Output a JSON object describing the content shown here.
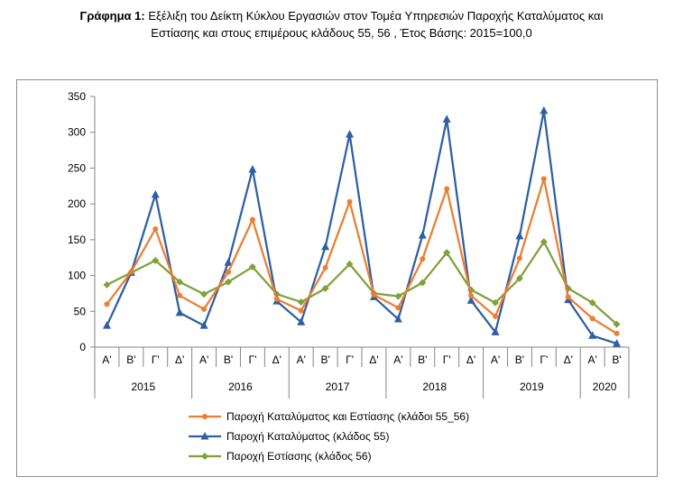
{
  "title": {
    "label": "Γράφημα 1:",
    "line1": "Εξέλιξη του Δείκτη Κύκλου Εργασιών στον Τομέα Υπηρεσιών Παροχής Καταλύματος και",
    "line2": "Εστίασης και στους επιμέρους κλάδους 55, 56 , Έτος Βάσης: 2015=100,0"
  },
  "chart_data": {
    "type": "line",
    "title": "",
    "xlabel": "",
    "ylabel": "",
    "ylim": [
      0,
      350
    ],
    "yticks": [
      0,
      50,
      100,
      150,
      200,
      250,
      300,
      350
    ],
    "grid": false,
    "legend_position": "bottom",
    "categories": [
      "Α'",
      "Β'",
      "Γ'",
      "Δ'",
      "Α'",
      "Β'",
      "Γ'",
      "Δ'",
      "Α'",
      "Β'",
      "Γ'",
      "Δ'",
      "Α'",
      "Β'",
      "Γ'",
      "Δ'",
      "Α'",
      "Β'",
      "Γ'",
      "Δ'",
      "Α'",
      "Β'"
    ],
    "years": [
      {
        "label": "2015",
        "count": 4
      },
      {
        "label": "2016",
        "count": 4
      },
      {
        "label": "2017",
        "count": 4
      },
      {
        "label": "2018",
        "count": 4
      },
      {
        "label": "2019",
        "count": 4
      },
      {
        "label": "2020",
        "count": 2
      }
    ],
    "series": [
      {
        "name": "Παροχή Καταλύματος και Εστίασης (κλάδοι 55_56)",
        "color": "#ed7d31",
        "marker": "circle",
        "values": [
          60,
          105,
          165,
          72,
          53,
          105,
          178,
          67,
          51,
          111,
          203,
          73,
          55,
          123,
          221,
          72,
          43,
          124,
          235,
          70,
          40,
          19
        ]
      },
      {
        "name": "Παροχή Καταλύματος  (κλάδος 55)",
        "color": "#2e5fa3",
        "marker": "triangle",
        "values": [
          30,
          104,
          213,
          48,
          30,
          118,
          248,
          64,
          35,
          140,
          297,
          70,
          39,
          156,
          318,
          65,
          21,
          155,
          330,
          66,
          16,
          5
        ]
      },
      {
        "name": "Παροχή Εστίασης  (κλάδος 56)",
        "color": "#7fa13c",
        "marker": "diamond",
        "values": [
          87,
          104,
          121,
          91,
          74,
          91,
          112,
          74,
          63,
          82,
          116,
          75,
          71,
          90,
          132,
          80,
          62,
          96,
          147,
          82,
          62,
          32
        ]
      }
    ]
  }
}
